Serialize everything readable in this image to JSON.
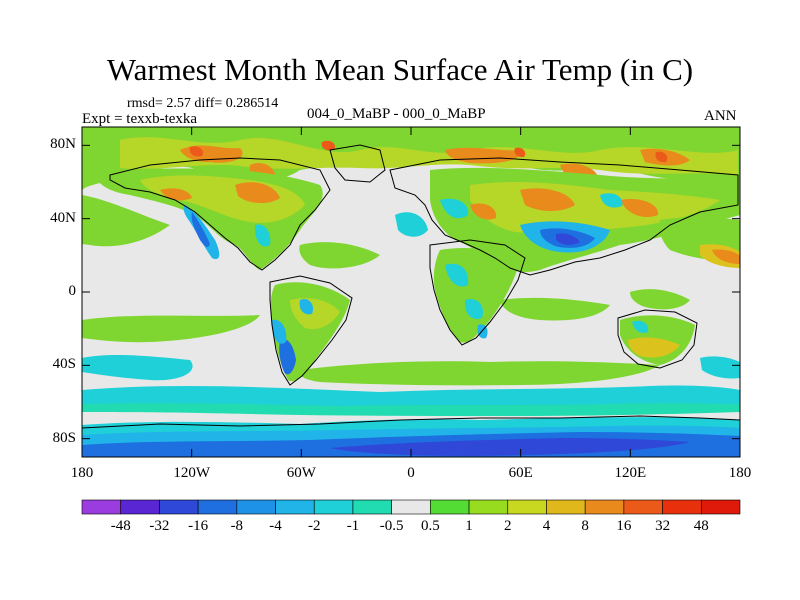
{
  "title": "Warmest Month Mean Surface Air Temp (in C)",
  "stats": "rmsd= 2.57 diff= 0.286514",
  "experiment": "Expt = texxb-texka",
  "subtitle": "004_0_MaBP - 000_0_MaBP",
  "period": "ANN",
  "y_axis": {
    "labels": [
      "80N",
      "40N",
      "0",
      "40S",
      "80S"
    ],
    "values": [
      80,
      40,
      0,
      -40,
      -80
    ],
    "range": [
      -90,
      90
    ]
  },
  "x_axis": {
    "labels": [
      "180",
      "120W",
      "60W",
      "0",
      "60E",
      "120E",
      "180"
    ],
    "values": [
      -180,
      -120,
      -60,
      0,
      60,
      120,
      180
    ],
    "range": [
      -180,
      180
    ]
  },
  "colorbar": {
    "labels": [
      "-48",
      "-32",
      "-16",
      "-8",
      "-4",
      "-2",
      "-1",
      "-0.5",
      "0.5",
      "1",
      "2",
      "4",
      "8",
      "16",
      "32",
      "48"
    ],
    "colors": [
      "#9b3ce0",
      "#5a26d4",
      "#2f48d8",
      "#1f6fe0",
      "#1e92e6",
      "#20b4e8",
      "#1fd0d8",
      "#20dcb0",
      "#e8e8e8",
      "#52dc34",
      "#98dc20",
      "#c8d820",
      "#e0b81c",
      "#e88a1c",
      "#ec5a1a",
      "#e8300c",
      "#e01a0a"
    ]
  },
  "map_colors": {
    "neutral": "#e8e8e8",
    "warm_green": "#7fd630",
    "yellow_green": "#b6d628",
    "yellow": "#dcc21c",
    "orange": "#e88a1c",
    "red": "#ec5a1a",
    "cyan_green": "#20dcb0",
    "cyan": "#1fd0d8",
    "light_blue": "#20b4e8",
    "blue": "#1e6fe0",
    "dark_blue": "#2f48d8",
    "coastline": "#000000"
  }
}
